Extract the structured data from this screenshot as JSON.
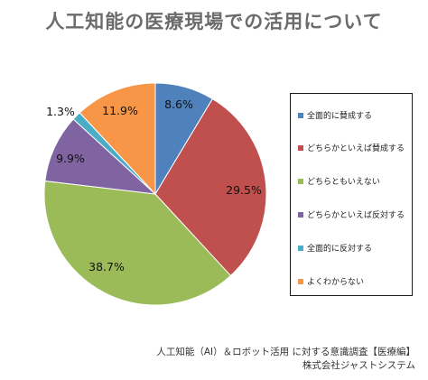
{
  "title": "人工知能の医療現場での活用について",
  "chart_data": {
    "type": "pie",
    "start": "12 o'clock",
    "direction": "clockwise",
    "slices": [
      {
        "label": "全面的に賛成する",
        "value": 8.6,
        "display": "8.6%",
        "color": "#4f81bd"
      },
      {
        "label": "どちらかといえば賛成する",
        "value": 29.5,
        "display": "29.5%",
        "color": "#c0504d"
      },
      {
        "label": "どちらともいえない",
        "value": 38.7,
        "display": "38.7%",
        "color": "#9bbb59"
      },
      {
        "label": "どちらかといえば反対する",
        "value": 9.9,
        "display": "9.9%",
        "color": "#8064a2"
      },
      {
        "label": "全面的に反対する",
        "value": 1.3,
        "display": "1.3%",
        "color": "#4bacc6"
      },
      {
        "label": "よくわからない",
        "value": 11.9,
        "display": "11.9%",
        "color": "#f79646"
      }
    ],
    "legend_placement": "right"
  },
  "source": {
    "line1": "人工知能（AI）＆ロボット活用 に対する意識調査【医療編】",
    "line2": "株式会社ジャストシステム"
  }
}
